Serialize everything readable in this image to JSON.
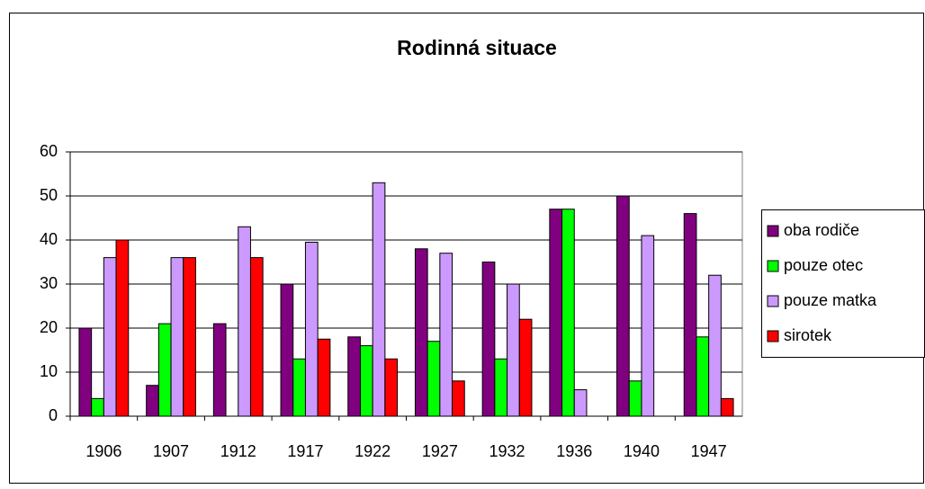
{
  "chart_data": {
    "type": "bar",
    "title": "Rodinná situace",
    "categories": [
      "1906",
      "1907",
      "1912",
      "1917",
      "1922",
      "1927",
      "1932",
      "1936",
      "1940",
      "1947"
    ],
    "series": [
      {
        "name": "oba rodiče",
        "color": "#800080",
        "values": [
          20,
          7,
          21,
          30,
          18,
          38,
          35,
          47,
          50,
          46
        ]
      },
      {
        "name": "pouze otec",
        "color": "#00ff00",
        "values": [
          4,
          21,
          0,
          13,
          16,
          17,
          13,
          47,
          8,
          18
        ]
      },
      {
        "name": "pouze matka",
        "color": "#cc99ff",
        "values": [
          36,
          36,
          43,
          39.5,
          53,
          37,
          30,
          6,
          41,
          32
        ]
      },
      {
        "name": "sirotek",
        "color": "#ff0000",
        "values": [
          40,
          36,
          36,
          17.5,
          13,
          8,
          22,
          0,
          0,
          4
        ]
      }
    ],
    "ylim": [
      0,
      60
    ],
    "yticks": [
      0,
      10,
      20,
      30,
      40,
      50,
      60
    ],
    "grid": true,
    "legend": "right"
  }
}
